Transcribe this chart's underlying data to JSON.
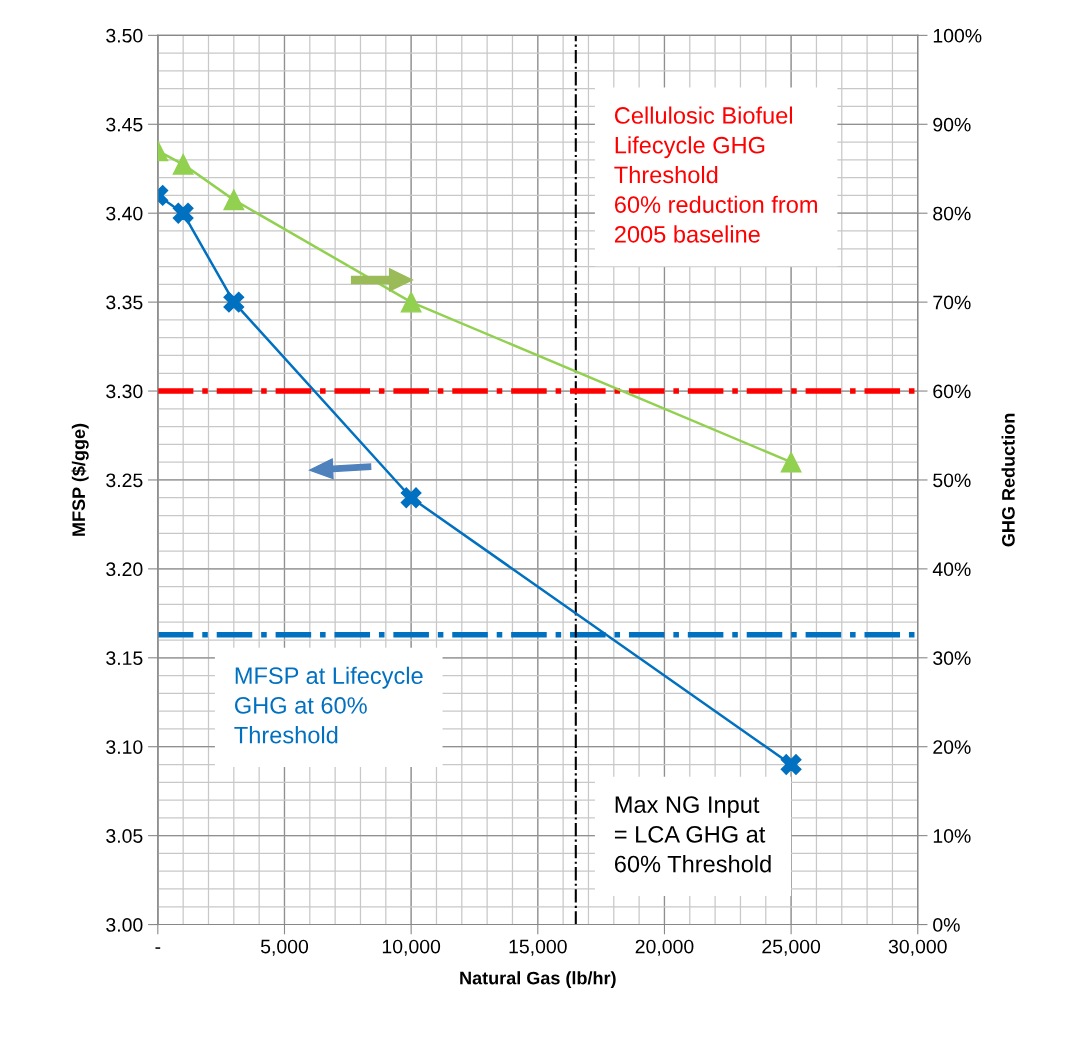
{
  "chart_data": {
    "type": "line",
    "xlabel": "Natural Gas (lb/hr)",
    "ylabel": "MFSP ($/gge)",
    "y2label": "GHG Reduction",
    "x": [
      0,
      1000,
      3000,
      10000,
      25000
    ],
    "series": [
      {
        "color": "#0070c0",
        "values": [
          3.41,
          3.4,
          3.35,
          3.24,
          3.09
        ],
        "marker": "cross"
      },
      {
        "color": "#92d050",
        "values": [
          87,
          85.5,
          81.5,
          70,
          52
        ],
        "axis": "y2",
        "marker": "triangle"
      }
    ],
    "xlim": [
      0,
      30000
    ],
    "xticks": [
      {
        "value": 0,
        "label": "-"
      },
      {
        "value": 5000,
        "label": "5,000"
      },
      {
        "value": 10000,
        "label": "10,000"
      },
      {
        "value": 15000,
        "label": "15,000"
      },
      {
        "value": 20000,
        "label": "20,000"
      },
      {
        "value": 25000,
        "label": "25,000"
      },
      {
        "value": 30000,
        "label": "30,000"
      }
    ],
    "ylim": [
      3.0,
      3.5
    ],
    "yticks": [
      {
        "value": 3.0,
        "label": "3.00"
      },
      {
        "value": 3.05,
        "label": "3.05"
      },
      {
        "value": 3.1,
        "label": "3.10"
      },
      {
        "value": 3.15,
        "label": "3.15"
      },
      {
        "value": 3.2,
        "label": "3.20"
      },
      {
        "value": 3.25,
        "label": "3.25"
      },
      {
        "value": 3.3,
        "label": "3.30"
      },
      {
        "value": 3.35,
        "label": "3.35"
      },
      {
        "value": 3.4,
        "label": "3.40"
      },
      {
        "value": 3.45,
        "label": "3.45"
      },
      {
        "value": 3.5,
        "label": "3.50"
      }
    ],
    "y2lim": [
      0,
      100
    ],
    "y2ticks": [
      {
        "value": 0,
        "label": "0%"
      },
      {
        "value": 10,
        "label": "10%"
      },
      {
        "value": 20,
        "label": "20%"
      },
      {
        "value": 30,
        "label": "30%"
      },
      {
        "value": 40,
        "label": "40%"
      },
      {
        "value": 50,
        "label": "50%"
      },
      {
        "value": 60,
        "label": "60%"
      },
      {
        "value": 70,
        "label": "70%"
      },
      {
        "value": 80,
        "label": "80%"
      },
      {
        "value": 90,
        "label": "90%"
      },
      {
        "value": 100,
        "label": "100%"
      }
    ],
    "grid": true,
    "ref_lines": [
      {
        "axis": "y2",
        "value": 60,
        "label": "Cellulosic Biofuel\nLifecycle GHG\nThreshold\n60% reduction from\n2005 baseline",
        "color": "#ff0000",
        "line_style": "dashdot"
      },
      {
        "axis": "y",
        "value": 3.163,
        "label": "MFSP at Lifecycle\nGHG at 60%\nThreshold",
        "color": "#0070c0",
        "line_style": "dashdot"
      },
      {
        "axis": "x",
        "value": 16500,
        "label": "Max NG Input\n= LCA GHG at\n60% Threshold",
        "color": "#000000",
        "line_style": "dashdot"
      }
    ]
  }
}
